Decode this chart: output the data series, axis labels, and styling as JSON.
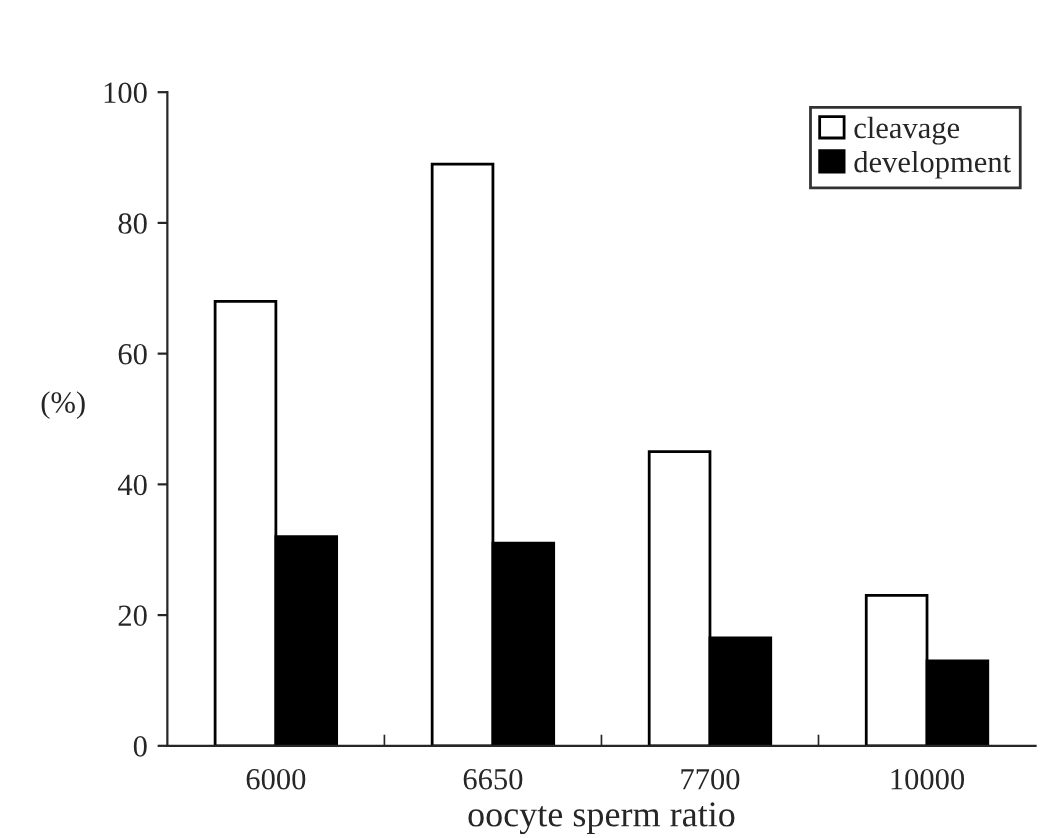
{
  "chart_data": {
    "type": "bar",
    "xlabel": "oocyte sperm ratio",
    "ylabel": "(%)",
    "categories": [
      "6000",
      "6650",
      "7700",
      "10000"
    ],
    "series": [
      {
        "name": "cleavage",
        "color": "#ffffff",
        "values": [
          68,
          89,
          45,
          23
        ]
      },
      {
        "name": "development",
        "color": "#000000",
        "values": [
          32,
          31,
          16.5,
          13
        ]
      }
    ],
    "ylim": [
      0,
      100
    ],
    "yticks": [
      0,
      20,
      40,
      60,
      80,
      100
    ],
    "legend": "top right",
    "grid": false
  }
}
